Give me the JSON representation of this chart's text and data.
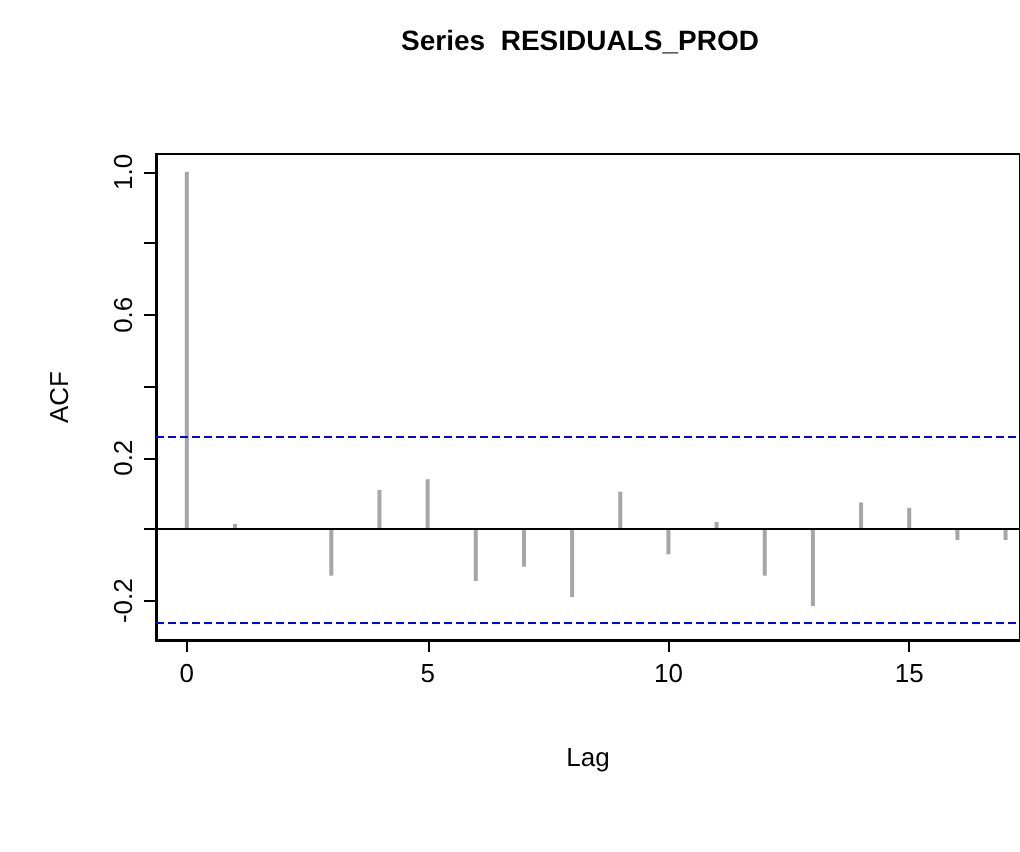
{
  "chart_data": {
    "type": "bar",
    "title": "Series  RESIDUALS_PROD",
    "xlabel": "Lag",
    "ylabel": "ACF",
    "x": [
      0,
      1,
      2,
      3,
      4,
      5,
      6,
      7,
      8,
      9,
      10,
      11,
      12,
      13,
      14,
      15,
      16,
      17
    ],
    "series": [
      {
        "color": "#a6a6a6",
        "values": [
          1.0,
          0.015,
          0,
          -0.13,
          0.11,
          0.14,
          -0.145,
          -0.105,
          -0.19,
          0.105,
          -0.07,
          0.02,
          -0.13,
          -0.215,
          0.075,
          0.06,
          -0.03,
          -0.03
        ]
      }
    ],
    "xlim": [
      -0.64,
      17.3
    ],
    "xticks": [
      0,
      5,
      10,
      15
    ],
    "ylim": [
      -0.31,
      1.05
    ],
    "yticks": [
      {
        "value": -0.2,
        "label": "-0.2"
      },
      {
        "value": 0,
        "label": null
      },
      {
        "value": 0.2,
        "label": "0.2"
      },
      {
        "value": 0.4,
        "label": null
      },
      {
        "value": 0.6,
        "label": "0.6"
      },
      {
        "value": 0.8,
        "label": null
      },
      {
        "value": 1,
        "label": "1.0"
      }
    ],
    "ref_lines": [
      {
        "axis": "y",
        "value": 0,
        "color": "#000000",
        "line_style": "solid"
      },
      {
        "axis": "y",
        "value": 0.264,
        "color": "#0000ff",
        "line_style": "dashed"
      },
      {
        "axis": "y",
        "value": -0.264,
        "color": "#0000ff",
        "line_style": "dashed"
      }
    ],
    "grid": false
  }
}
